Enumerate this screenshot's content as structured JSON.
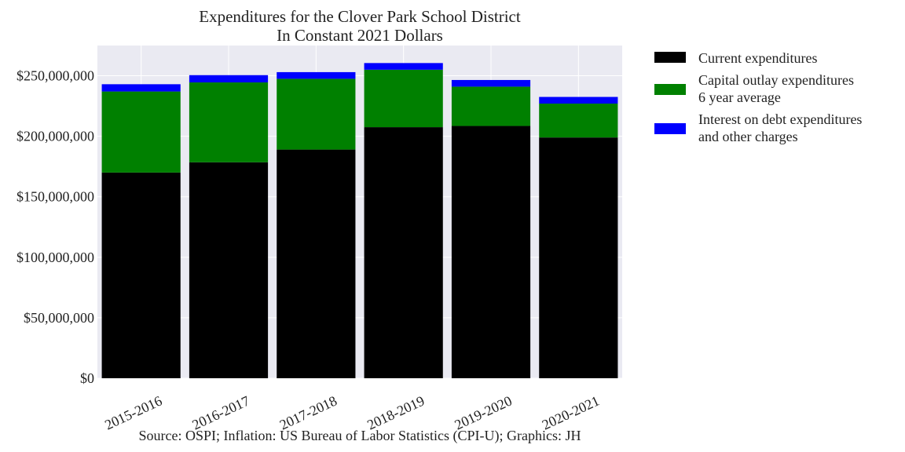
{
  "chart_data": {
    "type": "bar",
    "stacked": true,
    "title": [
      "Expenditures for the Clover Park School District",
      "In Constant 2021 Dollars"
    ],
    "xlabel": "",
    "ylabel": "",
    "categories": [
      "2015-2016",
      "2016-2017",
      "2017-2018",
      "2018-2019",
      "2019-2020",
      "2020-2021"
    ],
    "series": [
      {
        "name": "Current expenditures",
        "color": "#000000",
        "values": [
          170000000,
          178500000,
          189000000,
          207500000,
          208500000,
          199000000
        ]
      },
      {
        "name": "Capital outlay expenditures 6 year average",
        "color": "#008000",
        "values": [
          67000000,
          66000000,
          58500000,
          47500000,
          32500000,
          28000000
        ]
      },
      {
        "name": "Interest on debt expenditures and other charges",
        "color": "#0000ff",
        "values": [
          6000000,
          6000000,
          5500000,
          5500000,
          5500000,
          5500000
        ]
      }
    ],
    "legend": {
      "placement": "outside-right",
      "entries": [
        [
          "Current expenditures"
        ],
        [
          "Capital outlay expenditures",
          "6 year average"
        ],
        [
          "Interest on debt expenditures",
          "and other charges"
        ]
      ]
    },
    "ylim": [
      0,
      275000000
    ],
    "yticks": [
      0,
      50000000,
      100000000,
      150000000,
      200000000,
      250000000
    ],
    "ytick_labels": [
      "$0",
      "$50,000,000",
      "$100,000,000",
      "$150,000,000",
      "$200,000,000",
      "$250,000,000"
    ],
    "grid": true,
    "background": "#eaeaf2",
    "source": "Source: OSPI; Inflation: US Bureau of Labor Statistics (CPI-U); Graphics: JH"
  }
}
